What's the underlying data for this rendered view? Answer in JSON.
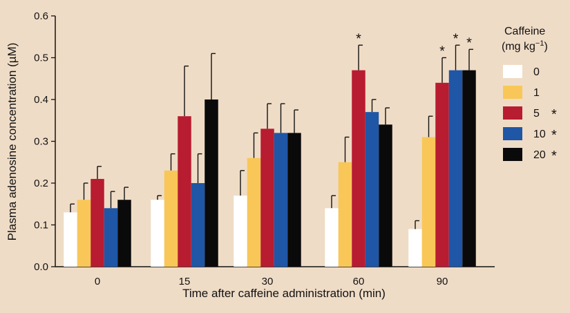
{
  "chart_data": {
    "type": "bar",
    "title": "",
    "xlabel": "Time after caffeine administration (min)",
    "ylabel": "Plasma adenosine concentration (µM)",
    "ylim": [
      0,
      0.6
    ],
    "yticks": [
      "0.0",
      "0.1",
      "0.2",
      "0.3",
      "0.4",
      "0.5",
      "0.6"
    ],
    "categories": [
      "0",
      "15",
      "30",
      "60",
      "90"
    ],
    "legend": {
      "title_line1": "Caffeine",
      "title_line2": "(mg kg",
      "title_sup": "−1",
      "title_close": ")",
      "position": "right"
    },
    "series": [
      {
        "name": "0",
        "color": "#ffffff",
        "values": [
          0.13,
          0.16,
          0.17,
          0.14,
          0.09
        ],
        "errors": [
          0.15,
          0.17,
          0.23,
          0.17,
          0.11
        ],
        "significant": false,
        "stars": [
          false,
          false,
          false,
          false,
          false
        ]
      },
      {
        "name": "1",
        "color": "#f9c757",
        "values": [
          0.16,
          0.23,
          0.26,
          0.25,
          0.31
        ],
        "errors": [
          0.2,
          0.27,
          0.32,
          0.31,
          0.36
        ],
        "significant": false,
        "stars": [
          false,
          false,
          false,
          false,
          false
        ]
      },
      {
        "name": "5",
        "color": "#b81c30",
        "values": [
          0.21,
          0.36,
          0.33,
          0.47,
          0.44
        ],
        "errors": [
          0.24,
          0.48,
          0.39,
          0.53,
          0.5
        ],
        "significant": true,
        "stars": [
          false,
          false,
          false,
          true,
          true
        ]
      },
      {
        "name": "10",
        "color": "#1f56a6",
        "values": [
          0.14,
          0.2,
          0.32,
          0.37,
          0.47
        ],
        "errors": [
          0.18,
          0.27,
          0.39,
          0.4,
          0.53
        ],
        "significant": true,
        "stars": [
          false,
          false,
          false,
          false,
          true
        ]
      },
      {
        "name": "20",
        "color": "#0a0a0a",
        "values": [
          0.16,
          0.4,
          0.32,
          0.34,
          0.47
        ],
        "errors": [
          0.19,
          0.51,
          0.375,
          0.38,
          0.52
        ],
        "significant": true,
        "stars": [
          false,
          false,
          false,
          false,
          true
        ]
      }
    ],
    "star_symbol": "*"
  }
}
